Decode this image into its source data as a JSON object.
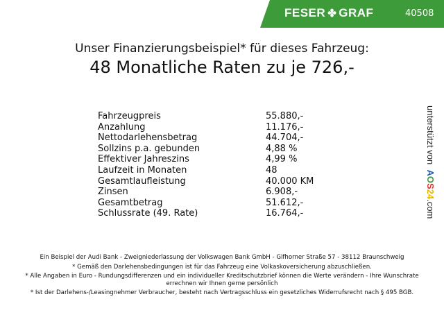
{
  "header": {
    "brand_left": "FESER",
    "brand_right": "GRAF",
    "brand_icon": "clover-icon",
    "code": "40508",
    "color": "#3d9b3a"
  },
  "title": {
    "line1": "Unser Finanzierungsbeispiel* für dieses Fahrzeug:",
    "line2": "48 Monatliche Raten zu je 726,-"
  },
  "rows": [
    {
      "label": "Fahrzeugpreis",
      "value": "55.880,-"
    },
    {
      "label": "Anzahlung",
      "value": "11.176,-"
    },
    {
      "label": "Nettodarlehensbetrag",
      "value": "44.704,-"
    },
    {
      "label": "Sollzins p.a. gebunden",
      "value": "4,88 %"
    },
    {
      "label": "Effektiver Jahreszins",
      "value": "4,99 %"
    },
    {
      "label": "Laufzeit in Monaten",
      "value": "48"
    },
    {
      "label": "Gesamtlaufleistung",
      "value": "40.000 KM"
    },
    {
      "label": "Zinsen",
      "value": "6.908,-"
    },
    {
      "label": "Gesamtbetrag",
      "value": "51.612,-"
    },
    {
      "label": "Schlussrate (49. Rate)",
      "value": "16.764,-"
    }
  ],
  "side": {
    "prefix": "unterstützt von",
    "logo": "AOS24",
    "suffix": ".com"
  },
  "footer": [
    "Ein Beispiel der Audi Bank - Zweigniederlassung der Volkswagen Bank GmbH - Gifhorner Straße 57 - 38112 Braunschweig",
    "* Gemäß den Darlehensbedingungen ist für das Fahrzeug eine Volkaskoversicherung abzuschließen.",
    "* Alle Angaben in Euro - Rundungsdifferenzen und ein individueller Kreditschutzbrief können die Werte verändern - Ihre Wunschrate errechnen wir Ihnen gerne persönlich",
    "* Ist der Darlehens-/Leasingnehmer Verbraucher, besteht nach Vertragsschluss ein gesetzliches Widerrufsrecht nach § 495 BGB."
  ]
}
